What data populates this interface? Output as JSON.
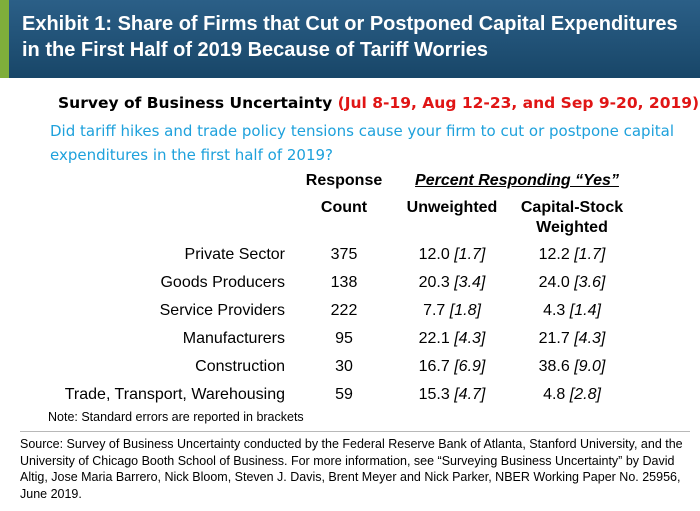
{
  "header": {
    "title": "Exhibit 1: Share of Firms that Cut or Postponed Capital Expenditures in the First Half of 2019 Because of Tariff Worries",
    "background_color": "#1f5078",
    "accent_color": "#7fae3b"
  },
  "survey": {
    "name": "Survey of Business Uncertainty",
    "dates": "(Jul 8-19, Aug 12-23, and Sep 9-20, 2019)",
    "dates_color": "#e01515"
  },
  "question": {
    "text": "Did tariff hikes and trade policy tensions cause your firm to cut or postpone capital expenditures in the first half of 2019?",
    "color": "#1ea1dc"
  },
  "table": {
    "headers": {
      "response": "Response",
      "count": "Count",
      "percent_yes": "Percent Responding “Yes”",
      "unweighted": "Unweighted",
      "capital_stock_weighted": "Capital-Stock Weighted"
    },
    "rows": [
      {
        "label": "Private Sector",
        "count": "375",
        "unweighted": "12.0",
        "unweighted_se": "[1.7]",
        "weighted": "12.2",
        "weighted_se": "[1.7]"
      },
      {
        "label": "Goods Producers",
        "count": "138",
        "unweighted": "20.3",
        "unweighted_se": "[3.4]",
        "weighted": "24.0",
        "weighted_se": "[3.6]"
      },
      {
        "label": "Service Providers",
        "count": "222",
        "unweighted": "7.7",
        "unweighted_se": "[1.8]",
        "weighted": "4.3",
        "weighted_se": "[1.4]"
      },
      {
        "label": "Manufacturers",
        "count": "95",
        "unweighted": "22.1",
        "unweighted_se": "[4.3]",
        "weighted": "21.7",
        "weighted_se": "[4.3]"
      },
      {
        "label": "Construction",
        "count": "30",
        "unweighted": "16.7",
        "unweighted_se": "[6.9]",
        "weighted": "38.6",
        "weighted_se": "[9.0]"
      },
      {
        "label": "Trade, Transport, Warehousing",
        "count": "59",
        "unweighted": "15.3",
        "unweighted_se": "[4.7]",
        "weighted": "4.8",
        "weighted_se": "[2.8]"
      }
    ],
    "note": "Note: Standard errors are reported in brackets"
  },
  "source": {
    "text": "Source: Survey of Business Uncertainty conducted by the Federal Reserve Bank of Atlanta, Stanford University, and the University of Chicago Booth School of Business. For more information, see “Surveying Business Uncertainty” by David Altig, Jose Maria Barrero, Nick Bloom, Steven J. Davis, Brent Meyer and Nick Parker, NBER Working Paper No. 25956, June 2019."
  }
}
